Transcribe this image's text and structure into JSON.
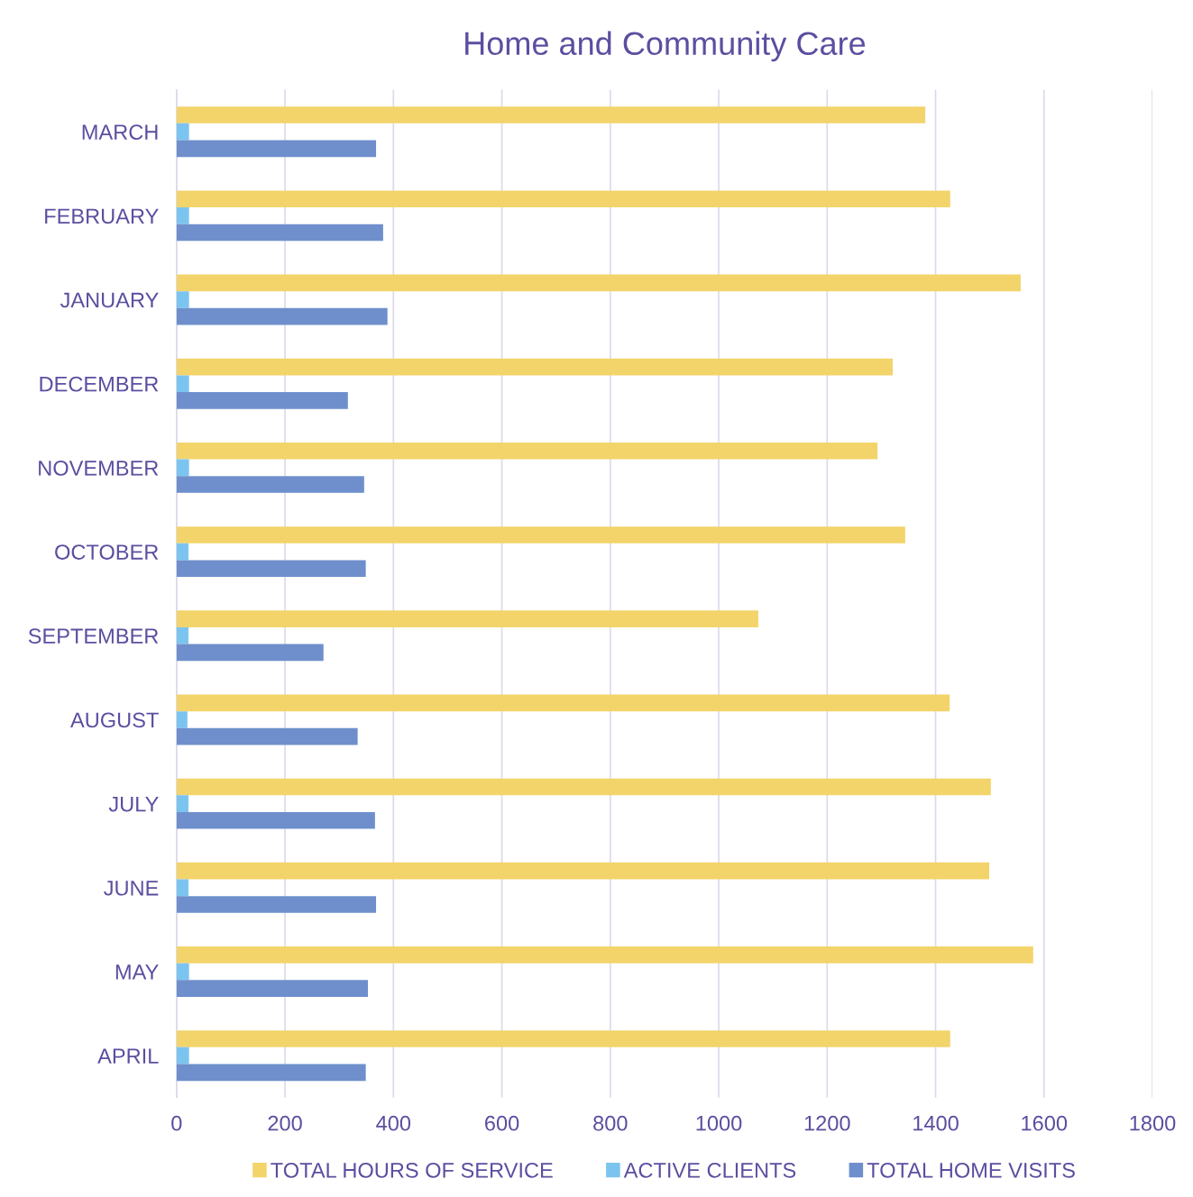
{
  "chart_data": {
    "type": "bar",
    "orientation": "horizontal",
    "title": "Home and Community Care",
    "categories": [
      "MARCH",
      "FEBRUARY",
      "JANUARY",
      "DECEMBER",
      "NOVEMBER",
      "OCTOBER",
      "SEPTEMBER",
      "AUGUST",
      "JULY",
      "JUNE",
      "MAY",
      "APRIL"
    ],
    "series": [
      {
        "name": "TOTAL HOURS OF SERVICE",
        "color": "#f2d46b",
        "values": [
          1381,
          1427,
          1557,
          1321,
          1293,
          1344,
          1073,
          1426,
          1502,
          1499,
          1580,
          1427
        ]
      },
      {
        "name": "ACTIVE CLIENTS",
        "color": "#7cc4f0",
        "values": [
          23,
          23,
          23,
          23,
          23,
          22,
          22,
          20,
          22,
          22,
          23,
          23
        ]
      },
      {
        "name": "TOTAL HOME VISITS",
        "color": "#6e8fcc",
        "values": [
          368,
          381,
          389,
          316,
          346,
          349,
          271,
          334,
          366,
          368,
          353,
          349
        ]
      }
    ],
    "xlim": [
      0,
      1800
    ],
    "xticks": [
      0,
      200,
      400,
      600,
      800,
      1000,
      1200,
      1400,
      1600,
      1800
    ],
    "grid": "x",
    "legend": "bottom"
  }
}
